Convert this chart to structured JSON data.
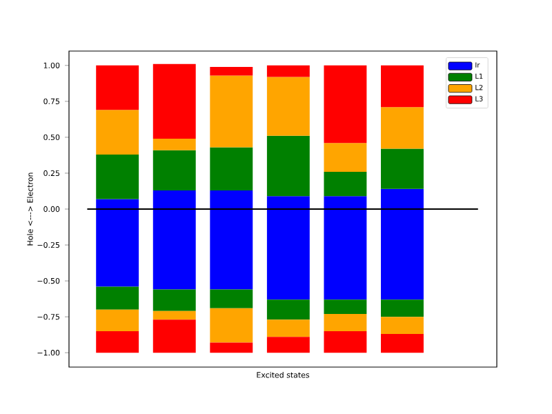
{
  "chart_data": {
    "type": "bar",
    "stacked": true,
    "xlabel": "Excited states",
    "ylabel": "Hole   <---> Electron",
    "categories": [
      null,
      null,
      null,
      null,
      null,
      null
    ],
    "series": [
      {
        "name": "Ir",
        "color": "#0000ff",
        "values": [
          0.07,
          0.13,
          0.13,
          0.09,
          0.09,
          0.14
        ]
      },
      {
        "name": "L1",
        "color": "#008000",
        "values": [
          0.31,
          0.28,
          0.3,
          0.42,
          0.17,
          0.28
        ]
      },
      {
        "name": "L2",
        "color": "#ffa500",
        "values": [
          0.31,
          0.08,
          0.5,
          0.41,
          0.2,
          0.29
        ]
      },
      {
        "name": "L3",
        "color": "#ff0000",
        "values": [
          0.31,
          0.52,
          0.06,
          0.08,
          0.54,
          0.29
        ]
      },
      {
        "color": "#0000ff",
        "values": [
          -0.54,
          -0.56,
          -0.56,
          -0.63,
          -0.63,
          -0.63
        ]
      },
      {
        "color": "#008000",
        "values": [
          -0.16,
          -0.15,
          -0.13,
          -0.14,
          -0.1,
          -0.12
        ]
      },
      {
        "color": "#ffa500",
        "values": [
          -0.15,
          -0.06,
          -0.24,
          -0.12,
          -0.12,
          -0.12
        ]
      },
      {
        "color": "#ff0000",
        "values": [
          -0.15,
          -0.23,
          -0.07,
          -0.11,
          -0.15,
          -0.13
        ]
      }
    ],
    "ylim": [
      -1.1,
      1.1
    ],
    "yticks": [
      {
        "value": -1,
        "label": "−1.00"
      },
      {
        "value": -0.75,
        "label": "−0.75"
      },
      {
        "value": -0.5,
        "label": "−0.50"
      },
      {
        "value": -0.25,
        "label": "−0.25"
      },
      {
        "value": 0,
        "label": "0.00"
      },
      {
        "value": 0.25,
        "label": "0.25"
      },
      {
        "value": 0.5,
        "label": "0.50"
      },
      {
        "value": 0.75,
        "label": "0.75"
      },
      {
        "value": 1,
        "label": "1.00"
      }
    ],
    "ref_lines": [
      {
        "axis": "y",
        "value": 0,
        "color": "#000000"
      }
    ],
    "legend": "top right",
    "grid": false
  }
}
